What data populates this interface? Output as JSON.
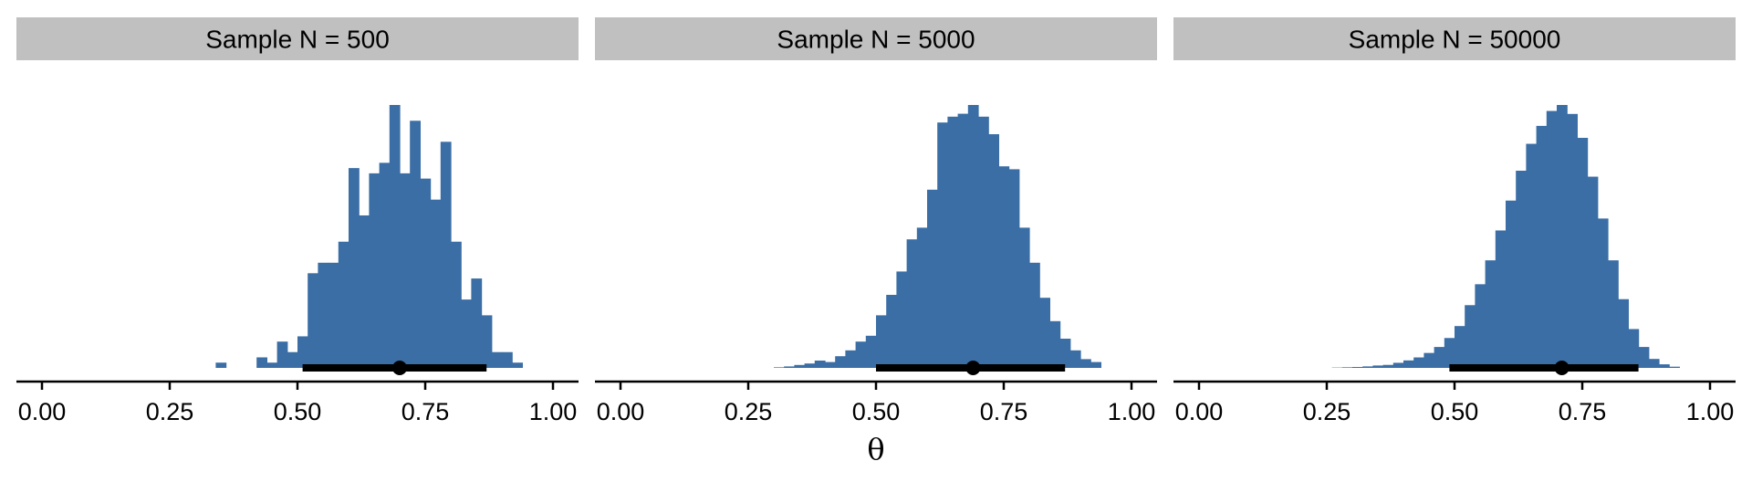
{
  "chart_data": {
    "type": "histogram",
    "bar_color": "#3a6ea5",
    "interval_color": "#000000",
    "xlabel": "θ",
    "xlim": [
      -0.05,
      1.05
    ],
    "x_ticks": [
      0,
      0.25,
      0.5,
      0.75,
      1
    ],
    "x_tick_labels": [
      "0.00",
      "0.25",
      "0.50",
      "0.75",
      "1.00"
    ],
    "y_axis_visible": false,
    "panels": [
      {
        "strip_label": "Sample N = 500",
        "bin_width": 0.02,
        "bins": [
          {
            "x": 0.34,
            "density": 0.2
          },
          {
            "x": 0.42,
            "density": 0.4
          },
          {
            "x": 0.44,
            "density": 0.2
          },
          {
            "x": 0.46,
            "density": 1.0
          },
          {
            "x": 0.48,
            "density": 0.6
          },
          {
            "x": 0.5,
            "density": 1.2
          },
          {
            "x": 0.52,
            "density": 3.6
          },
          {
            "x": 0.54,
            "density": 4.0
          },
          {
            "x": 0.56,
            "density": 4.0
          },
          {
            "x": 0.58,
            "density": 4.8
          },
          {
            "x": 0.6,
            "density": 7.6
          },
          {
            "x": 0.62,
            "density": 5.8
          },
          {
            "x": 0.64,
            "density": 7.4
          },
          {
            "x": 0.66,
            "density": 7.8
          },
          {
            "x": 0.68,
            "density": 10.0
          },
          {
            "x": 0.7,
            "density": 7.4
          },
          {
            "x": 0.72,
            "density": 9.4
          },
          {
            "x": 0.74,
            "density": 7.2
          },
          {
            "x": 0.76,
            "density": 6.4
          },
          {
            "x": 0.78,
            "density": 8.6
          },
          {
            "x": 0.8,
            "density": 4.8
          },
          {
            "x": 0.82,
            "density": 2.6
          },
          {
            "x": 0.84,
            "density": 3.4
          },
          {
            "x": 0.86,
            "density": 2.0
          },
          {
            "x": 0.88,
            "density": 0.6
          },
          {
            "x": 0.9,
            "density": 0.6
          },
          {
            "x": 0.92,
            "density": 0.2
          }
        ],
        "point_estimate": 0.7,
        "interval": [
          0.51,
          0.87
        ]
      },
      {
        "strip_label": "Sample N = 5000",
        "bin_width": 0.02,
        "bins": [
          {
            "x": 0.3,
            "density": 0.02
          },
          {
            "x": 0.32,
            "density": 0.05
          },
          {
            "x": 0.34,
            "density": 0.1
          },
          {
            "x": 0.36,
            "density": 0.15
          },
          {
            "x": 0.38,
            "density": 0.25
          },
          {
            "x": 0.4,
            "density": 0.2
          },
          {
            "x": 0.42,
            "density": 0.4
          },
          {
            "x": 0.44,
            "density": 0.6
          },
          {
            "x": 0.46,
            "density": 0.9
          },
          {
            "x": 0.48,
            "density": 1.1
          },
          {
            "x": 0.5,
            "density": 1.8
          },
          {
            "x": 0.52,
            "density": 2.5
          },
          {
            "x": 0.54,
            "density": 3.3
          },
          {
            "x": 0.56,
            "density": 4.4
          },
          {
            "x": 0.58,
            "density": 4.8
          },
          {
            "x": 0.6,
            "density": 6.1
          },
          {
            "x": 0.62,
            "density": 8.4
          },
          {
            "x": 0.64,
            "density": 8.6
          },
          {
            "x": 0.66,
            "density": 8.7
          },
          {
            "x": 0.68,
            "density": 9.0
          },
          {
            "x": 0.7,
            "density": 8.6
          },
          {
            "x": 0.72,
            "density": 8.0
          },
          {
            "x": 0.74,
            "density": 6.9
          },
          {
            "x": 0.76,
            "density": 6.8
          },
          {
            "x": 0.78,
            "density": 4.8
          },
          {
            "x": 0.8,
            "density": 3.6
          },
          {
            "x": 0.82,
            "density": 2.4
          },
          {
            "x": 0.84,
            "density": 1.6
          },
          {
            "x": 0.86,
            "density": 1.0
          },
          {
            "x": 0.88,
            "density": 0.6
          },
          {
            "x": 0.9,
            "density": 0.3
          },
          {
            "x": 0.92,
            "density": 0.2
          }
        ],
        "point_estimate": 0.69,
        "interval": [
          0.5,
          0.87
        ]
      },
      {
        "strip_label": "Sample N = 50000",
        "bin_width": 0.02,
        "bins": [
          {
            "x": 0.26,
            "density": 0.01
          },
          {
            "x": 0.28,
            "density": 0.02
          },
          {
            "x": 0.3,
            "density": 0.03
          },
          {
            "x": 0.32,
            "density": 0.05
          },
          {
            "x": 0.34,
            "density": 0.08
          },
          {
            "x": 0.36,
            "density": 0.1
          },
          {
            "x": 0.38,
            "density": 0.17
          },
          {
            "x": 0.4,
            "density": 0.25
          },
          {
            "x": 0.42,
            "density": 0.35
          },
          {
            "x": 0.44,
            "density": 0.5
          },
          {
            "x": 0.46,
            "density": 0.7
          },
          {
            "x": 0.48,
            "density": 1.0
          },
          {
            "x": 0.5,
            "density": 1.4
          },
          {
            "x": 0.52,
            "density": 2.1
          },
          {
            "x": 0.54,
            "density": 2.8
          },
          {
            "x": 0.56,
            "density": 3.6
          },
          {
            "x": 0.58,
            "density": 4.6
          },
          {
            "x": 0.6,
            "density": 5.6
          },
          {
            "x": 0.62,
            "density": 6.6
          },
          {
            "x": 0.64,
            "density": 7.5
          },
          {
            "x": 0.66,
            "density": 8.1
          },
          {
            "x": 0.68,
            "density": 8.6
          },
          {
            "x": 0.7,
            "density": 8.8
          },
          {
            "x": 0.72,
            "density": 8.5
          },
          {
            "x": 0.74,
            "density": 7.7
          },
          {
            "x": 0.76,
            "density": 6.4
          },
          {
            "x": 0.78,
            "density": 5.0
          },
          {
            "x": 0.8,
            "density": 3.6
          },
          {
            "x": 0.82,
            "density": 2.3
          },
          {
            "x": 0.84,
            "density": 1.3
          },
          {
            "x": 0.86,
            "density": 0.7
          },
          {
            "x": 0.88,
            "density": 0.3
          },
          {
            "x": 0.9,
            "density": 0.12
          },
          {
            "x": 0.92,
            "density": 0.04
          }
        ],
        "point_estimate": 0.71,
        "interval": [
          0.49,
          0.86
        ]
      }
    ]
  }
}
